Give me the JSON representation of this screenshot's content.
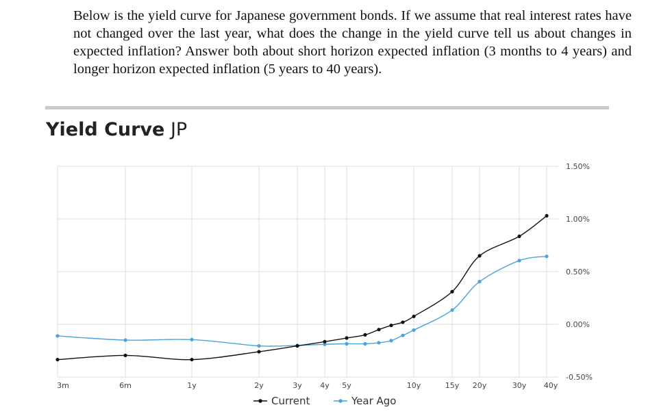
{
  "question": {
    "text": "Below is the yield curve for Japanese government bonds. If we assume that real interest rates have not changed over the last year, what does the change in the yield curve tell us about changes in expected inflation? Answer both about short horizon expected inflation (3 months to 4 years) and longer horizon expected inflation (5 years to 40 years)."
  },
  "chart_data": {
    "type": "line",
    "title_bold": "Yield Curve",
    "title_rest": "JP",
    "categories": [
      "3m",
      "6m",
      "1y",
      "2y",
      "3y",
      "4y",
      "5y",
      "10y",
      "15y",
      "20y",
      "30y",
      "40y"
    ],
    "y_ticks": [
      "-0.50%",
      "0.00%",
      "0.50%",
      "1.00%",
      "1.50%"
    ],
    "ylim": [
      -0.5,
      1.5
    ],
    "y_axis_position": "right",
    "grid": true,
    "legend_position": "bottom-center",
    "series": [
      {
        "name": "Current",
        "color": "#111111",
        "points": [
          {
            "x": "3m",
            "y": -0.335
          },
          {
            "x": "6m",
            "y": -0.295
          },
          {
            "x": "1y",
            "y": -0.335
          },
          {
            "x": "2y",
            "y": -0.26
          },
          {
            "x": "3y",
            "y": -0.205
          },
          {
            "x": "4y",
            "y": -0.165
          },
          {
            "x": "5y",
            "y": -0.13
          },
          {
            "x": "6y",
            "y": -0.1
          },
          {
            "x": "7y",
            "y": -0.05
          },
          {
            "x": "8y",
            "y": -0.01
          },
          {
            "x": "9y",
            "y": 0.02
          },
          {
            "x": "10y",
            "y": 0.075
          },
          {
            "x": "15y",
            "y": 0.31
          },
          {
            "x": "20y",
            "y": 0.65
          },
          {
            "x": "30y",
            "y": 0.835
          },
          {
            "x": "40y",
            "y": 1.03
          }
        ]
      },
      {
        "name": "Year Ago",
        "color": "#4aa3db",
        "points": [
          {
            "x": "3m",
            "y": -0.11
          },
          {
            "x": "6m",
            "y": -0.15
          },
          {
            "x": "1y",
            "y": -0.145
          },
          {
            "x": "2y",
            "y": -0.205
          },
          {
            "x": "3y",
            "y": -0.2
          },
          {
            "x": "4y",
            "y": -0.19
          },
          {
            "x": "5y",
            "y": -0.185
          },
          {
            "x": "6y",
            "y": -0.185
          },
          {
            "x": "7y",
            "y": -0.175
          },
          {
            "x": "8y",
            "y": -0.155
          },
          {
            "x": "9y",
            "y": -0.105
          },
          {
            "x": "10y",
            "y": -0.055
          },
          {
            "x": "15y",
            "y": 0.135
          },
          {
            "x": "20y",
            "y": 0.405
          },
          {
            "x": "30y",
            "y": 0.605
          },
          {
            "x": "40y",
            "y": 0.645
          }
        ]
      }
    ]
  }
}
